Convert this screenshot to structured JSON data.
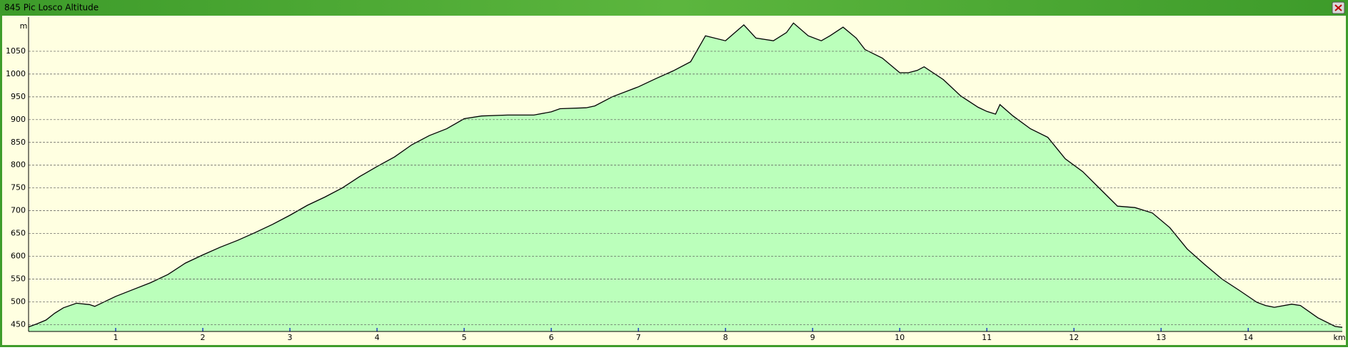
{
  "window_title": "845 Pic Losco Altitude",
  "chart_data": {
    "type": "area",
    "y_label": "m",
    "x_label": "km",
    "x": [
      0,
      0.1,
      0.2,
      0.3,
      0.4,
      0.55,
      0.7,
      0.76,
      1.0,
      1.2,
      1.4,
      1.6,
      1.8,
      2.0,
      2.2,
      2.4,
      2.6,
      2.8,
      3.0,
      3.2,
      3.4,
      3.6,
      3.8,
      4.0,
      4.2,
      4.4,
      4.6,
      4.8,
      5.0,
      5.2,
      5.5,
      5.8,
      6.0,
      6.1,
      6.4,
      6.5,
      6.7,
      7.0,
      7.2,
      7.4,
      7.6,
      7.77,
      8.0,
      8.21,
      8.35,
      8.55,
      8.7,
      8.78,
      8.95,
      9.1,
      9.2,
      9.35,
      9.5,
      9.6,
      9.8,
      10.0,
      10.1,
      10.2,
      10.28,
      10.5,
      10.7,
      10.9,
      11.0,
      11.1,
      11.15,
      11.3,
      11.5,
      11.7,
      11.9,
      12.1,
      12.3,
      12.5,
      12.7,
      12.9,
      13.1,
      13.3,
      13.5,
      13.7,
      13.9,
      14.1,
      14.2,
      14.3,
      14.5,
      14.6,
      14.8,
      15.0,
      15.08
    ],
    "values": [
      445,
      452,
      460,
      475,
      487,
      497,
      494,
      490,
      512,
      527,
      542,
      560,
      585,
      603,
      620,
      635,
      652,
      670,
      690,
      712,
      730,
      750,
      775,
      797,
      818,
      845,
      865,
      880,
      902,
      908,
      910,
      910,
      917,
      924,
      926,
      930,
      950,
      972,
      990,
      1007,
      1027,
      1084,
      1073,
      1108,
      1079,
      1073,
      1091,
      1112,
      1084,
      1073,
      1084,
      1103,
      1079,
      1054,
      1035,
      1003,
      1003,
      1008,
      1016,
      988,
      952,
      927,
      918,
      912,
      933,
      908,
      880,
      861,
      814,
      786,
      748,
      710,
      707,
      695,
      663,
      616,
      582,
      550,
      525,
      499,
      492,
      488,
      495,
      492,
      465,
      446,
      444
    ],
    "color": "#bbffbb",
    "line_color": "#000000",
    "xlim": [
      0,
      15.08
    ],
    "ylim": [
      435,
      1125
    ],
    "xticks": [
      1,
      2,
      3,
      4,
      5,
      6,
      7,
      8,
      9,
      10,
      11,
      12,
      13,
      14
    ],
    "yticks": [
      450,
      500,
      550,
      600,
      650,
      700,
      750,
      800,
      850,
      900,
      950,
      1000,
      1050
    ],
    "grid": true
  }
}
